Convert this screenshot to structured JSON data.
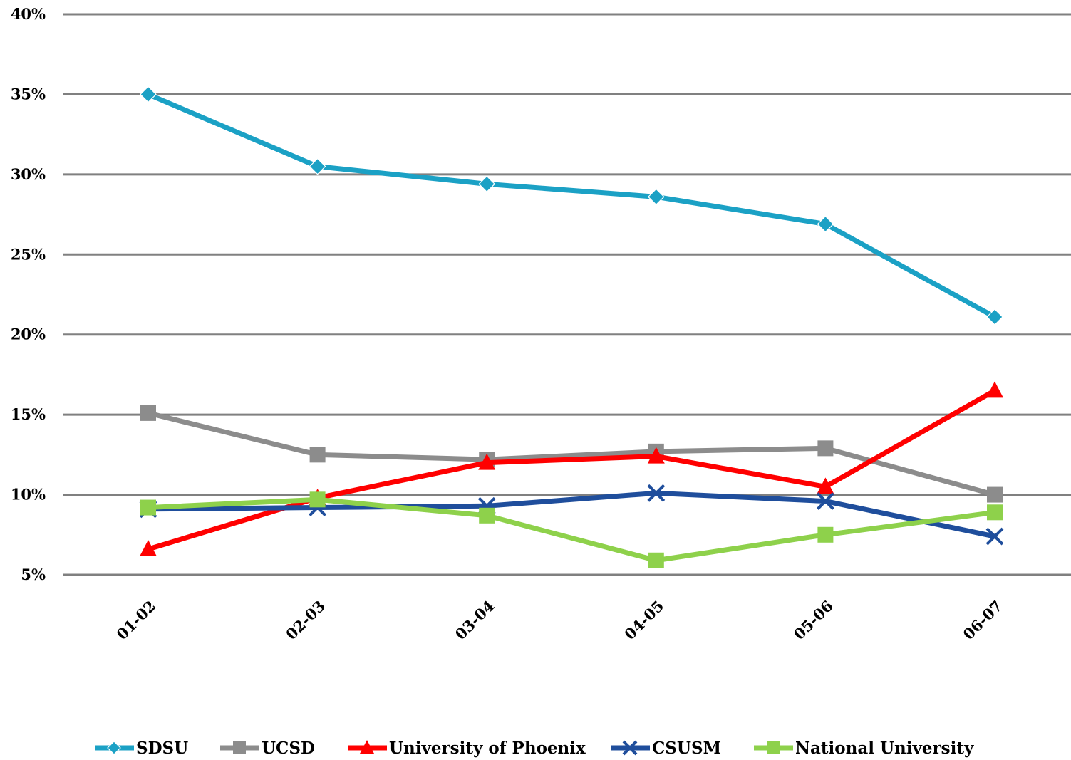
{
  "chart_data": {
    "type": "line",
    "categories": [
      "01-02",
      "02-03",
      "03-04",
      "04-05",
      "05-06",
      "06-07"
    ],
    "y_tick_labels": [
      "5%",
      "10%",
      "15%",
      "20%",
      "25%",
      "30%",
      "35%",
      "40%"
    ],
    "y_ticks": [
      5,
      10,
      15,
      20,
      25,
      30,
      35,
      40
    ],
    "ylim": [
      5,
      40
    ],
    "grid": true,
    "legend_position": "bottom",
    "series": [
      {
        "name": "SDSU",
        "values": [
          35.0,
          30.5,
          29.4,
          28.6,
          26.9,
          21.1
        ],
        "color": "#1ba1c5",
        "marker": "diamond"
      },
      {
        "name": "UCSD",
        "values": [
          15.1,
          12.5,
          12.2,
          12.7,
          12.9,
          10.0
        ],
        "color": "#8c8c8c",
        "marker": "square"
      },
      {
        "name": "University of Phoenix",
        "values": [
          6.6,
          9.8,
          12.0,
          12.4,
          10.5,
          16.5
        ],
        "color": "#ff0000",
        "marker": "triangle"
      },
      {
        "name": "CSUSM",
        "values": [
          9.1,
          9.2,
          9.3,
          10.1,
          9.6,
          7.4
        ],
        "color": "#1f4e9c",
        "marker": "x"
      },
      {
        "name": "National University",
        "values": [
          9.2,
          9.7,
          8.7,
          5.9,
          7.5,
          8.9
        ],
        "color": "#8ed14b",
        "marker": "square"
      }
    ]
  }
}
